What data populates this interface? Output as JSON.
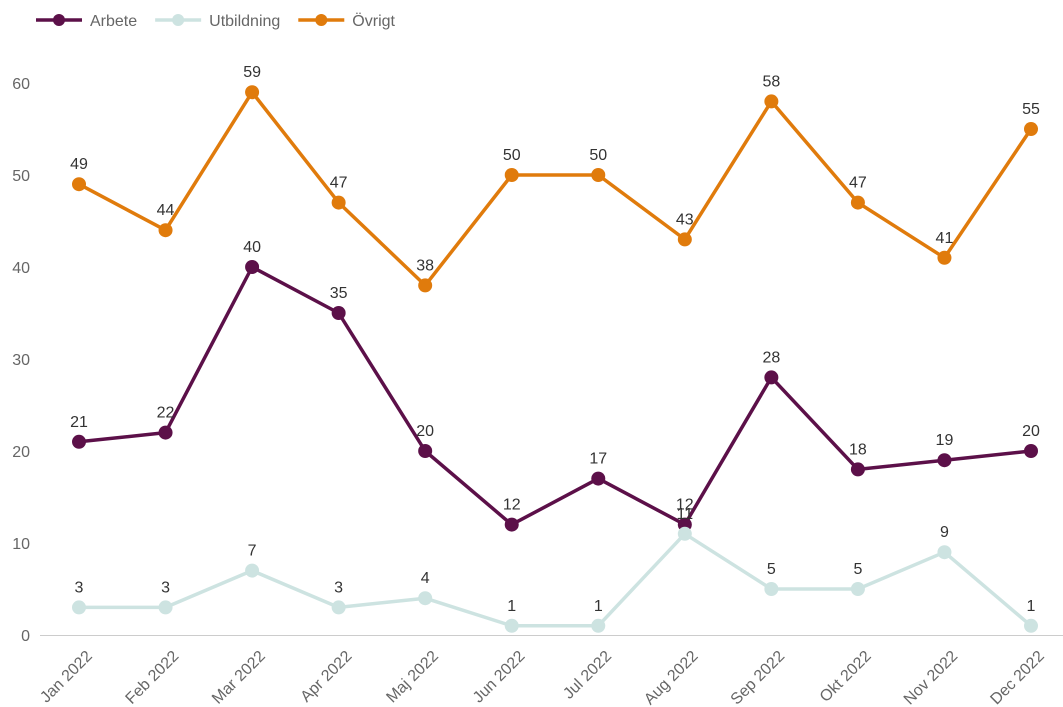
{
  "chart_data": {
    "type": "line",
    "categories": [
      "Jan 2022",
      "Feb 2022",
      "Mar 2022",
      "Apr 2022",
      "Maj 2022",
      "Jun 2022",
      "Jul 2022",
      "Aug 2022",
      "Sep 2022",
      "Okt 2022",
      "Nov 2022",
      "Dec 2022"
    ],
    "series": [
      {
        "name": "Arbete",
        "color": "#5c1049",
        "values": [
          21,
          22,
          40,
          35,
          20,
          12,
          17,
          12,
          28,
          18,
          19,
          20
        ]
      },
      {
        "name": "Utbildning",
        "color": "#cde3e1",
        "values": [
          3,
          3,
          7,
          3,
          4,
          1,
          1,
          11,
          5,
          5,
          9,
          1
        ]
      },
      {
        "name": "Övrigt",
        "color": "#e07b0c",
        "values": [
          49,
          44,
          59,
          47,
          38,
          50,
          50,
          43,
          58,
          47,
          41,
          55
        ]
      }
    ],
    "ylim": [
      0,
      60
    ],
    "yticks": [
      0,
      10,
      20,
      30,
      40,
      50,
      60
    ],
    "grid": false,
    "legend": "top-left"
  }
}
